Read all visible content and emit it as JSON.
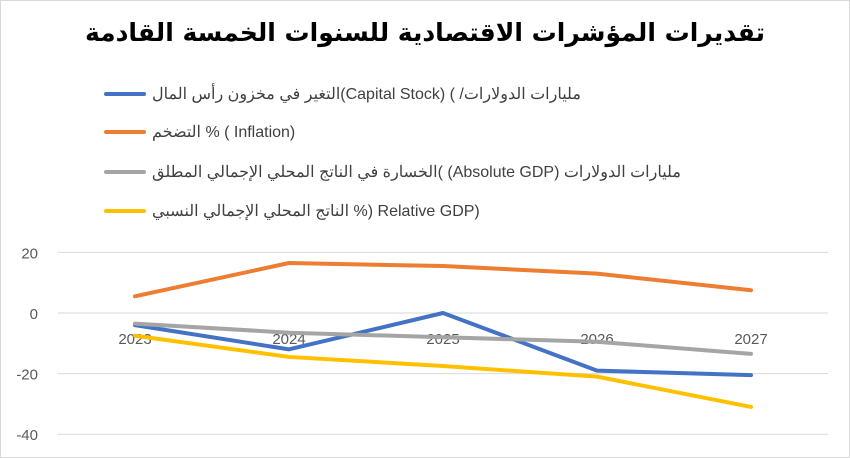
{
  "chart_data": {
    "type": "line",
    "title": "تقديرات المؤشرات الاقتصادية للسنوات الخمسة القادمة",
    "categories": [
      "2023",
      "2024",
      "2025",
      "2026",
      "2027"
    ],
    "ylim": [
      -40,
      20
    ],
    "yticks": [
      "20",
      "0",
      "-20",
      "-40"
    ],
    "grid": true,
    "legend_position": "top-left",
    "series": [
      {
        "name": "التغير في مخزون رأس المال(Capital Stock) ( /مليارات الدولارات",
        "color": "#4472c4",
        "values": [
          -4,
          -12,
          0,
          -19,
          -20.5
        ]
      },
      {
        "name": "التضخم %  (  Inflation)",
        "color": "#ed7d31",
        "values": [
          5.5,
          16.5,
          15.5,
          13,
          7.5
        ]
      },
      {
        "name": "الخسارة في الناتج المحلي الإجمالي المطلق( (Absolute GDP) مليارات الدولارات",
        "color": "#a5a5a5",
        "values": [
          -3.5,
          -6.5,
          -8,
          -9.5,
          -13.5
        ]
      },
      {
        "name": "الناتج المحلي الإجمالي النسبي %) Relative GDP)",
        "color": "#ffc000",
        "values": [
          -7.5,
          -14.5,
          -17.5,
          -21,
          -31
        ]
      }
    ]
  }
}
